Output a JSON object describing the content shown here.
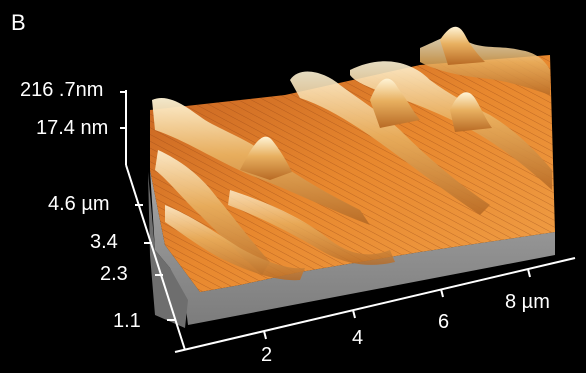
{
  "figure": {
    "panel_label": "B",
    "z_axis": {
      "ticks": [
        "216 .7nm",
        "17.4 nm"
      ]
    },
    "y_axis": {
      "ticks": [
        "4.6 µm",
        "3.4",
        "2.3",
        "1.1"
      ]
    },
    "x_axis": {
      "ticks": [
        "2",
        "4",
        "6",
        "8 µm"
      ]
    },
    "colors": {
      "background": "#000000",
      "base": "#8c8c8c",
      "surface_low": "#b8521a",
      "surface_mid": "#e8882e",
      "surface_high": "#f6e4b0",
      "axes": "#ffffff"
    }
  }
}
